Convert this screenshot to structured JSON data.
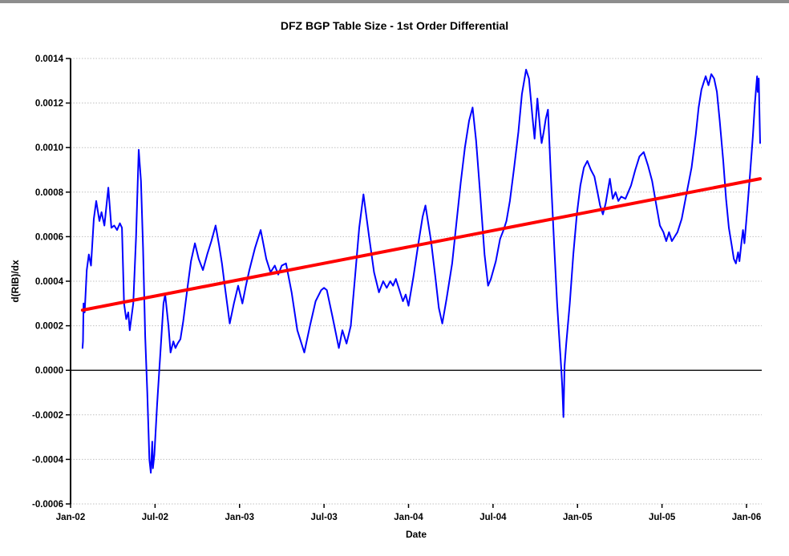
{
  "window": {
    "top_border_color": "#8d8d8d",
    "background_color": "#ffffff"
  },
  "chart_data": {
    "type": "line",
    "title": "DFZ BGP Table Size - 1st Order Differential",
    "xlabel": "Date",
    "ylabel": "d(RIB)/dx",
    "x_unit": "months since Jan-02",
    "xlim": [
      0,
      49.2
    ],
    "ylim": [
      -0.0006,
      0.0014
    ],
    "grid": "horizontal dotted gridlines only",
    "legend": "none",
    "zero_line": true,
    "colors": {
      "data_line": "#0000ff",
      "trend_line": "#ff0000",
      "gridline": "#c0c0c0",
      "axis": "#000000"
    },
    "x_ticks": [
      {
        "month": 0,
        "label": "Jan-02"
      },
      {
        "month": 6,
        "label": "Jul-02"
      },
      {
        "month": 12,
        "label": "Jan-03"
      },
      {
        "month": 18,
        "label": "Jul-03"
      },
      {
        "month": 24,
        "label": "Jan-04"
      },
      {
        "month": 30,
        "label": "Jul-04"
      },
      {
        "month": 36,
        "label": "Jan-05"
      },
      {
        "month": 42,
        "label": "Jul-05"
      },
      {
        "month": 48,
        "label": "Jan-06"
      }
    ],
    "y_ticks": [
      {
        "value": 0.0014,
        "label": "0.0014"
      },
      {
        "value": 0.0012,
        "label": "0.0012"
      },
      {
        "value": 0.001,
        "label": "0.0010"
      },
      {
        "value": 0.0008,
        "label": "0.0008"
      },
      {
        "value": 0.0006,
        "label": "0.0006"
      },
      {
        "value": 0.0004,
        "label": "0.0004"
      },
      {
        "value": 0.0002,
        "label": "0.0002"
      },
      {
        "value": 0.0,
        "label": "0.0000"
      },
      {
        "value": -0.0002,
        "label": "-0.0002"
      },
      {
        "value": -0.0004,
        "label": "-0.0004"
      },
      {
        "value": -0.0006,
        "label": "-0.0006"
      }
    ],
    "series": [
      {
        "id": "blue-data-series",
        "color": "#0000ff",
        "width": 2,
        "points": [
          [
            0.85,
            0.0001
          ],
          [
            0.88,
            0.00013
          ],
          [
            0.92,
            0.0003
          ],
          [
            1.0,
            0.00026
          ],
          [
            1.15,
            0.00045
          ],
          [
            1.3,
            0.00052
          ],
          [
            1.45,
            0.00047
          ],
          [
            1.65,
            0.00068
          ],
          [
            1.82,
            0.00076
          ],
          [
            2.05,
            0.00067
          ],
          [
            2.2,
            0.00071
          ],
          [
            2.4,
            0.00065
          ],
          [
            2.68,
            0.00082
          ],
          [
            2.9,
            0.00064
          ],
          [
            3.1,
            0.00065
          ],
          [
            3.3,
            0.00063
          ],
          [
            3.5,
            0.00066
          ],
          [
            3.65,
            0.00064
          ],
          [
            3.8,
            0.0003
          ],
          [
            3.95,
            0.00023
          ],
          [
            4.1,
            0.00026
          ],
          [
            4.2,
            0.00018
          ],
          [
            4.45,
            0.0003
          ],
          [
            4.65,
            0.0006
          ],
          [
            4.84,
            0.00099
          ],
          [
            5.0,
            0.00085
          ],
          [
            5.15,
            0.00055
          ],
          [
            5.3,
            0.00015
          ],
          [
            5.45,
            -0.0001
          ],
          [
            5.6,
            -0.0004
          ],
          [
            5.7,
            -0.00046
          ],
          [
            5.8,
            -0.00032
          ],
          [
            5.85,
            -0.00044
          ],
          [
            5.95,
            -0.00038
          ],
          [
            6.15,
            -0.00015
          ],
          [
            6.4,
            0.0001
          ],
          [
            6.6,
            0.0003
          ],
          [
            6.72,
            0.00034
          ],
          [
            6.95,
            0.0002
          ],
          [
            7.1,
            8e-05
          ],
          [
            7.3,
            0.00013
          ],
          [
            7.45,
            0.0001
          ],
          [
            7.6,
            0.00012
          ],
          [
            7.8,
            0.00014
          ],
          [
            8.0,
            0.00022
          ],
          [
            8.3,
            0.00037
          ],
          [
            8.55,
            0.00049
          ],
          [
            8.83,
            0.00057
          ],
          [
            9.1,
            0.0005
          ],
          [
            9.4,
            0.00045
          ],
          [
            9.7,
            0.00052
          ],
          [
            10.0,
            0.00058
          ],
          [
            10.3,
            0.00065
          ],
          [
            10.55,
            0.00056
          ],
          [
            10.75,
            0.00048
          ],
          [
            10.95,
            0.00038
          ],
          [
            11.3,
            0.00021
          ],
          [
            11.6,
            0.0003
          ],
          [
            11.9,
            0.00038
          ],
          [
            12.2,
            0.0003
          ],
          [
            12.45,
            0.00038
          ],
          [
            12.7,
            0.00045
          ],
          [
            13.1,
            0.00055
          ],
          [
            13.5,
            0.00063
          ],
          [
            13.9,
            0.0005
          ],
          [
            14.2,
            0.00044
          ],
          [
            14.5,
            0.00047
          ],
          [
            14.75,
            0.00043
          ],
          [
            15.0,
            0.00047
          ],
          [
            15.3,
            0.00048
          ],
          [
            15.7,
            0.00035
          ],
          [
            16.1,
            0.00018
          ],
          [
            16.6,
            8e-05
          ],
          [
            17.0,
            0.0002
          ],
          [
            17.4,
            0.00031
          ],
          [
            17.8,
            0.00036
          ],
          [
            18.0,
            0.00037
          ],
          [
            18.2,
            0.00036
          ],
          [
            18.6,
            0.00024
          ],
          [
            19.05,
            0.0001
          ],
          [
            19.3,
            0.00018
          ],
          [
            19.6,
            0.00012
          ],
          [
            19.9,
            0.0002
          ],
          [
            20.2,
            0.00042
          ],
          [
            20.5,
            0.00064
          ],
          [
            20.8,
            0.00079
          ],
          [
            21.2,
            0.0006
          ],
          [
            21.55,
            0.00044
          ],
          [
            21.9,
            0.00035
          ],
          [
            22.2,
            0.0004
          ],
          [
            22.45,
            0.00037
          ],
          [
            22.7,
            0.0004
          ],
          [
            22.9,
            0.00038
          ],
          [
            23.1,
            0.00041
          ],
          [
            23.6,
            0.00031
          ],
          [
            23.8,
            0.00034
          ],
          [
            24.0,
            0.00029
          ],
          [
            24.35,
            0.00042
          ],
          [
            24.7,
            0.00057
          ],
          [
            25.0,
            0.00069
          ],
          [
            25.2,
            0.00074
          ],
          [
            25.6,
            0.00058
          ],
          [
            25.9,
            0.00042
          ],
          [
            26.15,
            0.00028
          ],
          [
            26.4,
            0.00021
          ],
          [
            26.7,
            0.00032
          ],
          [
            27.1,
            0.00048
          ],
          [
            27.4,
            0.00066
          ],
          [
            27.7,
            0.00084
          ],
          [
            28.0,
            0.001
          ],
          [
            28.3,
            0.00112
          ],
          [
            28.55,
            0.00118
          ],
          [
            28.8,
            0.00103
          ],
          [
            29.1,
            0.00078
          ],
          [
            29.4,
            0.00052
          ],
          [
            29.65,
            0.00038
          ],
          [
            29.85,
            0.00041
          ],
          [
            30.2,
            0.00049
          ],
          [
            30.5,
            0.00059
          ],
          [
            30.75,
            0.00063
          ],
          [
            30.95,
            0.00067
          ],
          [
            31.2,
            0.00076
          ],
          [
            31.5,
            0.00091
          ],
          [
            31.8,
            0.00107
          ],
          [
            32.05,
            0.00124
          ],
          [
            32.35,
            0.00135
          ],
          [
            32.55,
            0.00131
          ],
          [
            32.8,
            0.00114
          ],
          [
            32.95,
            0.00104
          ],
          [
            33.15,
            0.00122
          ],
          [
            33.35,
            0.00108
          ],
          [
            33.45,
            0.00102
          ],
          [
            33.6,
            0.00107
          ],
          [
            33.75,
            0.00113
          ],
          [
            33.9,
            0.00117
          ],
          [
            34.1,
            0.00088
          ],
          [
            34.35,
            0.00055
          ],
          [
            34.55,
            0.0003
          ],
          [
            34.7,
            0.00015
          ],
          [
            34.85,
            0.0
          ],
          [
            34.92,
            -8e-05
          ],
          [
            35.0,
            -0.00021
          ],
          [
            35.08,
            2e-05
          ],
          [
            35.2,
            0.00012
          ],
          [
            35.45,
            0.0003
          ],
          [
            35.7,
            0.00052
          ],
          [
            35.95,
            0.0007
          ],
          [
            36.2,
            0.00083
          ],
          [
            36.45,
            0.00091
          ],
          [
            36.7,
            0.00094
          ],
          [
            36.95,
            0.0009
          ],
          [
            37.2,
            0.00087
          ],
          [
            37.45,
            0.00079
          ],
          [
            37.6,
            0.00074
          ],
          [
            37.8,
            0.0007
          ],
          [
            38.0,
            0.00075
          ],
          [
            38.3,
            0.00086
          ],
          [
            38.5,
            0.00077
          ],
          [
            38.7,
            0.0008
          ],
          [
            38.9,
            0.00076
          ],
          [
            39.1,
            0.00078
          ],
          [
            39.4,
            0.00077
          ],
          [
            39.8,
            0.00083
          ],
          [
            40.1,
            0.0009
          ],
          [
            40.4,
            0.00096
          ],
          [
            40.7,
            0.00098
          ],
          [
            41.0,
            0.00092
          ],
          [
            41.3,
            0.00085
          ],
          [
            41.6,
            0.00074
          ],
          [
            41.85,
            0.00065
          ],
          [
            42.1,
            0.00062
          ],
          [
            42.3,
            0.00058
          ],
          [
            42.5,
            0.00062
          ],
          [
            42.7,
            0.00058
          ],
          [
            42.9,
            0.0006
          ],
          [
            43.1,
            0.00062
          ],
          [
            43.4,
            0.00068
          ],
          [
            43.7,
            0.00078
          ],
          [
            44.1,
            0.00091
          ],
          [
            44.4,
            0.00106
          ],
          [
            44.6,
            0.00118
          ],
          [
            44.8,
            0.00126
          ],
          [
            44.95,
            0.00129
          ],
          [
            45.1,
            0.00132
          ],
          [
            45.3,
            0.00128
          ],
          [
            45.5,
            0.00133
          ],
          [
            45.7,
            0.00131
          ],
          [
            45.9,
            0.00125
          ],
          [
            46.1,
            0.00112
          ],
          [
            46.35,
            0.00094
          ],
          [
            46.55,
            0.00077
          ],
          [
            46.75,
            0.00064
          ],
          [
            46.95,
            0.00056
          ],
          [
            47.1,
            0.0005
          ],
          [
            47.25,
            0.00048
          ],
          [
            47.4,
            0.00053
          ],
          [
            47.5,
            0.00049
          ],
          [
            47.65,
            0.00058
          ],
          [
            47.75,
            0.00063
          ],
          [
            47.85,
            0.00057
          ],
          [
            48.05,
            0.00072
          ],
          [
            48.25,
            0.00088
          ],
          [
            48.45,
            0.00105
          ],
          [
            48.6,
            0.0012
          ],
          [
            48.75,
            0.00132
          ],
          [
            48.8,
            0.00125
          ],
          [
            48.87,
            0.00131
          ],
          [
            48.92,
            0.00115
          ],
          [
            48.97,
            0.00102
          ]
        ]
      },
      {
        "id": "red-trend-line",
        "color": "#ff0000",
        "width": 4,
        "points": [
          [
            0.85,
            0.00027
          ],
          [
            48.97,
            0.00086
          ]
        ]
      }
    ]
  }
}
